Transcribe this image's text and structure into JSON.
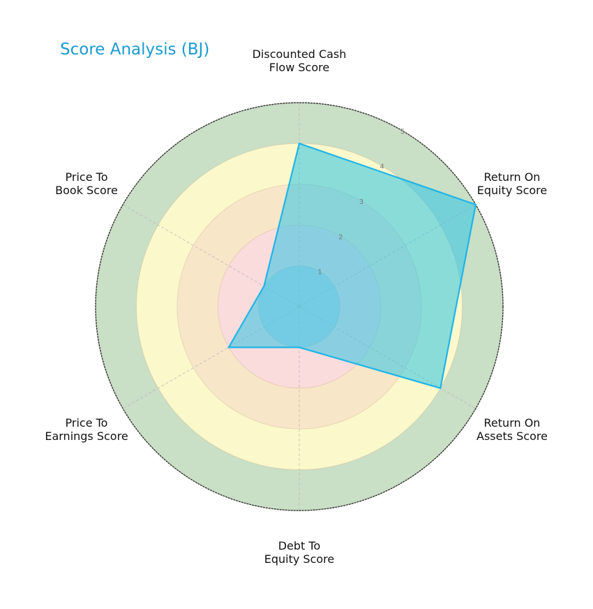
{
  "chart_data": {
    "type": "radar",
    "title": "Score Analysis (BJ)",
    "categories": [
      "Discounted Cash Flow Score",
      "Return On Equity Score",
      "Return On Assets Score",
      "Debt To Equity Score",
      "Price To Earnings Score",
      "Price To Book Score"
    ],
    "series": [
      {
        "name": "BJ",
        "values": [
          4,
          5,
          4,
          1,
          2,
          1
        ],
        "line_color": "#1fb4e8",
        "fill_color": "#2ec5e6"
      }
    ],
    "rlim": [
      0,
      5
    ],
    "rticks": [
      "1",
      "2",
      "3",
      "4",
      "5"
    ],
    "bands": [
      {
        "from": 0,
        "to": 1,
        "color": "#c7d4e3"
      },
      {
        "from": 1,
        "to": 2,
        "color": "#fadcdc"
      },
      {
        "from": 2,
        "to": 3,
        "color": "#f8e6c8"
      },
      {
        "from": 3,
        "to": 4,
        "color": "#fbf8cb"
      },
      {
        "from": 4,
        "to": 5,
        "color": "#c9dfc6"
      }
    ],
    "grid": true
  },
  "title": "Score Analysis (BJ)",
  "axis_labels": [
    "Discounted Cash\nFlow Score",
    "Return On\nEquity Score",
    "Return On\nAssets Score",
    "Debt To\nEquity Score",
    "Price To\nEarnings Score",
    "Price To\nBook Score"
  ]
}
